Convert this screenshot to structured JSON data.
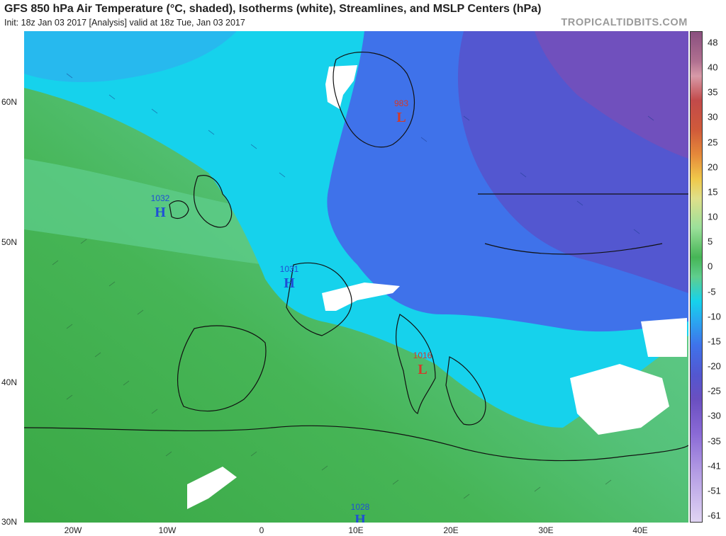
{
  "header": {
    "title": "GFS 850 hPa Air Temperature (°C, shaded), Isotherms (white), Streamlines, and MSLP Centers (hPa)",
    "subtitle": "Init: 18z Jan 03 2017  [Analysis]   valid at 18z Tue, Jan 03 2017",
    "brand": "TROPICALTIDBITS.COM"
  },
  "axes": {
    "lat_labels": [
      "60N",
      "50N",
      "40N",
      "30N"
    ],
    "lon_labels": [
      "20W",
      "10W",
      "0",
      "10E",
      "20E",
      "30E",
      "40E"
    ]
  },
  "colorbar": {
    "ticks": [
      "48",
      "40",
      "35",
      "30",
      "25",
      "20",
      "15",
      "10",
      "5",
      "0",
      "-5",
      "-10",
      "-15",
      "-20",
      "-25",
      "-30",
      "-35",
      "-41",
      "-51",
      "-61"
    ]
  },
  "pressure_centers": [
    {
      "value": "1032",
      "letter": "H",
      "kind": "high"
    },
    {
      "value": "1031",
      "letter": "H",
      "kind": "high"
    },
    {
      "value": "983",
      "letter": "L",
      "kind": "low"
    },
    {
      "value": "1016",
      "letter": "L",
      "kind": "low"
    },
    {
      "value": "1028",
      "letter": "H",
      "kind": "high"
    }
  ],
  "colors": {
    "high": "#1f4fd6",
    "low": "#d23a2a",
    "warm_green": "#3cb04a",
    "cyan": "#1ad6ee",
    "blue": "#3a6ae8",
    "purple": "#6a4fc0"
  }
}
